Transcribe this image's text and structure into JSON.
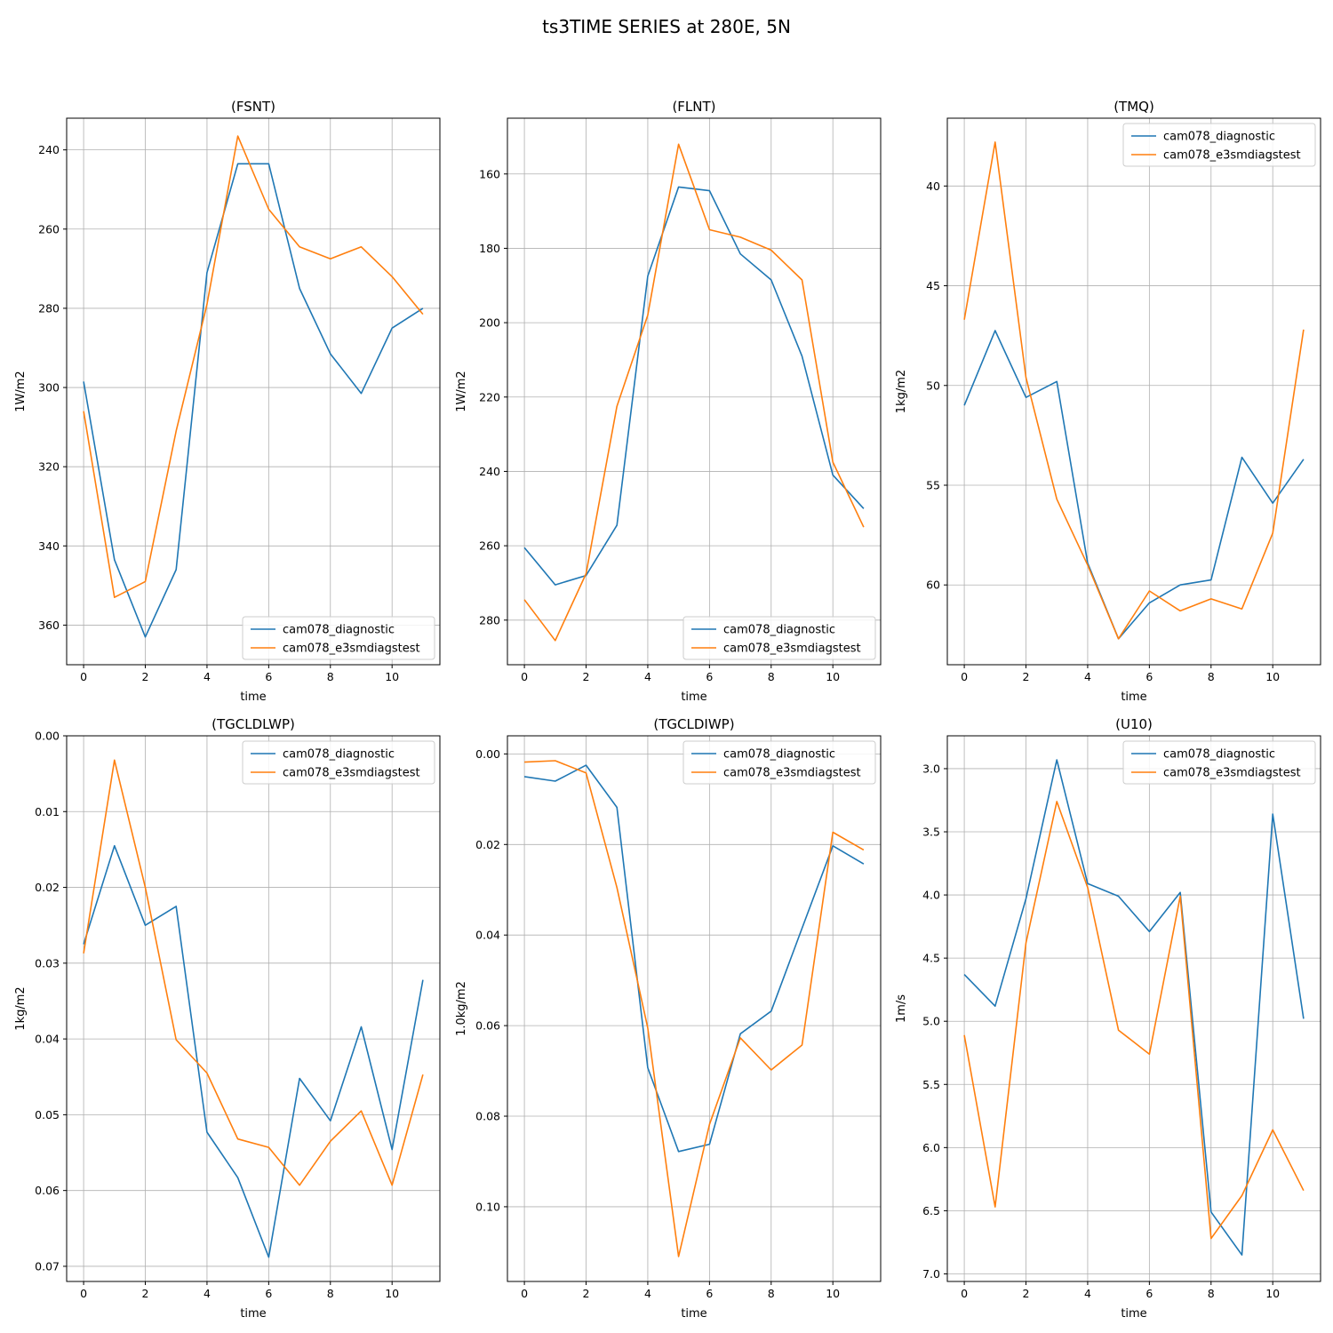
{
  "figure": {
    "title": "ts3TIME SERIES at 280E, 5N"
  },
  "colors": {
    "cam078_diagnostic": "#1f77b4",
    "cam078_e3smdiagstest": "#ff7f0e",
    "grid": "#b0b0b0"
  },
  "chart_data": [
    {
      "type": "line",
      "title": "(FSNT)",
      "xlabel": "time",
      "ylabel": "1W/m2",
      "inverted_y": true,
      "grid": true,
      "legend": "lower right",
      "xlim": [
        -0.55,
        11.55
      ],
      "ylim": [
        370.0,
        232.0
      ],
      "xticks": [
        0,
        2,
        4,
        6,
        8,
        10
      ],
      "yticks": [
        240,
        260,
        280,
        300,
        320,
        340,
        360
      ],
      "ytick_labels": [
        "240",
        "260",
        "280",
        "300",
        "320",
        "340",
        "360"
      ],
      "x": [
        0,
        1,
        2,
        3,
        4,
        5,
        6,
        7,
        8,
        9,
        10,
        11
      ],
      "series": [
        {
          "name": "cam078_diagnostic",
          "values": [
            298.5,
            343.5,
            363.0,
            346.0,
            271.0,
            243.5,
            243.5,
            275.0,
            291.5,
            301.5,
            285.0,
            280.0
          ]
        },
        {
          "name": "cam078_e3smdiagstest",
          "values": [
            306.0,
            353.0,
            349.0,
            311.0,
            279.0,
            236.5,
            255.0,
            264.5,
            267.5,
            264.5,
            272.0,
            281.5
          ]
        }
      ]
    },
    {
      "type": "line",
      "title": "(FLNT)",
      "xlabel": "time",
      "ylabel": "1W/m2",
      "inverted_y": true,
      "grid": true,
      "legend": "lower right",
      "xlim": [
        -0.55,
        11.55
      ],
      "ylim": [
        292.0,
        145.0
      ],
      "xticks": [
        0,
        2,
        4,
        6,
        8,
        10
      ],
      "yticks": [
        160,
        180,
        200,
        220,
        240,
        260,
        280
      ],
      "ytick_labels": [
        "160",
        "180",
        "200",
        "220",
        "240",
        "260",
        "280"
      ],
      "x": [
        0,
        1,
        2,
        3,
        4,
        5,
        6,
        7,
        8,
        9,
        10,
        11
      ],
      "series": [
        {
          "name": "cam078_diagnostic",
          "values": [
            260.5,
            270.5,
            268.0,
            254.5,
            187.5,
            163.5,
            164.5,
            181.5,
            188.5,
            209.0,
            241.0,
            250.0
          ]
        },
        {
          "name": "cam078_e3smdiagstest",
          "values": [
            274.5,
            285.5,
            267.5,
            222.5,
            198.0,
            152.0,
            175.0,
            177.0,
            180.5,
            188.5,
            237.5,
            255.0
          ]
        }
      ]
    },
    {
      "type": "line",
      "title": "(TMQ)",
      "xlabel": "time",
      "ylabel": "1kg/m2",
      "inverted_y": true,
      "grid": true,
      "legend": "upper right",
      "xlim": [
        -0.55,
        11.55
      ],
      "ylim": [
        64.0,
        36.6
      ],
      "xticks": [
        0,
        2,
        4,
        6,
        8,
        10
      ],
      "yticks": [
        40,
        45,
        50,
        55,
        60
      ],
      "ytick_labels": [
        "40",
        "45",
        "50",
        "55",
        "60"
      ],
      "x": [
        0,
        1,
        2,
        3,
        4,
        5,
        6,
        7,
        8,
        9,
        10,
        11
      ],
      "series": [
        {
          "name": "cam078_diagnostic",
          "values": [
            51.0,
            47.25,
            50.6,
            49.8,
            58.9,
            62.7,
            60.9,
            60.0,
            59.75,
            53.6,
            55.9,
            53.7
          ]
        },
        {
          "name": "cam078_e3smdiagstest",
          "values": [
            46.7,
            37.8,
            49.6,
            55.7,
            59.0,
            62.7,
            60.3,
            61.3,
            60.7,
            61.2,
            57.4,
            47.2
          ]
        }
      ]
    },
    {
      "type": "line",
      "title": "(TGCLDLWP)",
      "xlabel": "time",
      "ylabel": "1kg/m2",
      "inverted_y": true,
      "grid": true,
      "legend": "upper right",
      "xlim": [
        -0.55,
        11.55
      ],
      "ylim": [
        0.072,
        0.0
      ],
      "xticks": [
        0,
        2,
        4,
        6,
        8,
        10
      ],
      "yticks": [
        0.0,
        0.01,
        0.02,
        0.03,
        0.04,
        0.05,
        0.06,
        0.07
      ],
      "ytick_labels": [
        "0.00",
        "0.01",
        "0.02",
        "0.03",
        "0.04",
        "0.05",
        "0.06",
        "0.07"
      ],
      "x": [
        0,
        1,
        2,
        3,
        4,
        5,
        6,
        7,
        8,
        9,
        10,
        11
      ],
      "series": [
        {
          "name": "cam078_diagnostic",
          "values": [
            0.0275,
            0.0145,
            0.025,
            0.0225,
            0.0523,
            0.0583,
            0.0688,
            0.0452,
            0.0508,
            0.0384,
            0.0546,
            0.0322
          ]
        },
        {
          "name": "cam078_e3smdiagstest",
          "values": [
            0.0287,
            0.0032,
            0.02,
            0.0401,
            0.0445,
            0.0532,
            0.0543,
            0.0593,
            0.0535,
            0.0495,
            0.0593,
            0.0447
          ]
        }
      ]
    },
    {
      "type": "line",
      "title": "(TGCLDIWP)",
      "xlabel": "time",
      "ylabel": "1.0kg/m2",
      "inverted_y": true,
      "grid": true,
      "legend": "upper right",
      "xlim": [
        -0.55,
        11.55
      ],
      "ylim": [
        0.1165,
        -0.004
      ],
      "xticks": [
        0,
        2,
        4,
        6,
        8,
        10
      ],
      "yticks": [
        0.0,
        0.02,
        0.04,
        0.06,
        0.08,
        0.1
      ],
      "ytick_labels": [
        "0.00",
        "0.02",
        "0.04",
        "0.06",
        "0.08",
        "0.10"
      ],
      "x": [
        0,
        1,
        2,
        3,
        4,
        5,
        6,
        7,
        8,
        9,
        10,
        11
      ],
      "series": [
        {
          "name": "cam078_diagnostic",
          "values": [
            0.005,
            0.006,
            0.0025,
            0.0118,
            0.0693,
            0.0878,
            0.0862,
            0.0618,
            0.0568,
            0.0385,
            0.0203,
            0.0243
          ]
        },
        {
          "name": "cam078_e3smdiagstest",
          "values": [
            0.0018,
            0.0015,
            0.0042,
            0.0295,
            0.0605,
            0.111,
            0.0818,
            0.0627,
            0.0698,
            0.0643,
            0.0173,
            0.0212
          ]
        }
      ]
    },
    {
      "type": "line",
      "title": "(U10)",
      "xlabel": "time",
      "ylabel": "1m/s",
      "inverted_y": true,
      "grid": true,
      "legend": "upper right",
      "xlim": [
        -0.55,
        11.55
      ],
      "ylim": [
        7.06,
        2.74
      ],
      "xticks": [
        0,
        2,
        4,
        6,
        8,
        10
      ],
      "yticks": [
        3.0,
        3.5,
        4.0,
        4.5,
        5.0,
        5.5,
        6.0,
        6.5,
        7.0
      ],
      "ytick_labels": [
        "3.0",
        "3.5",
        "4.0",
        "4.5",
        "5.0",
        "5.5",
        "6.0",
        "6.5",
        "7.0"
      ],
      "x": [
        0,
        1,
        2,
        3,
        4,
        5,
        6,
        7,
        8,
        9,
        10,
        11
      ],
      "series": [
        {
          "name": "cam078_diagnostic",
          "values": [
            4.63,
            4.88,
            4.03,
            2.93,
            3.91,
            4.01,
            4.29,
            3.98,
            6.51,
            6.85,
            3.36,
            4.98
          ]
        },
        {
          "name": "cam078_e3smdiagstest",
          "values": [
            5.11,
            6.47,
            4.38,
            3.26,
            3.94,
            5.07,
            5.26,
            4.01,
            6.72,
            6.38,
            5.86,
            6.34
          ]
        }
      ]
    }
  ]
}
